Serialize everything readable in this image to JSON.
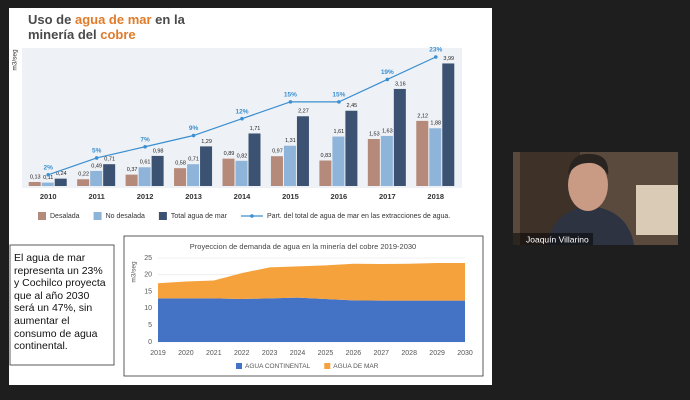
{
  "slide": {
    "chart1": {
      "type": "bar",
      "title": [
        {
          "text": "Uso de ",
          "color": "#4a4a4a"
        },
        {
          "text": "agua de mar",
          "color": "#e07b2a"
        },
        {
          "text": " en la",
          "color": "#4a4a4a"
        },
        {
          "text": "minería del ",
          "color": "#4a4a4a"
        },
        {
          "text": "cobre",
          "color": "#e07b2a"
        }
      ],
      "ylabel": "m3/seg",
      "categories": [
        "2010",
        "2011",
        "2012",
        "2013",
        "2014",
        "2015",
        "2016",
        "2017",
        "2018"
      ],
      "ylim": [
        0,
        4.2
      ],
      "y2lim": [
        0,
        23
      ],
      "series": [
        {
          "name": "Desalada",
          "color": "#b58a7a",
          "values": [
            0.13,
            0.22,
            0.37,
            0.58,
            0.89,
            0.97,
            0.83,
            1.53,
            2.12
          ],
          "value_labels": [
            "0,13",
            "0,22",
            "0,37",
            "0,58",
            "0,89",
            "0,97",
            "0,83",
            "1,53",
            "2,12"
          ]
        },
        {
          "name": "No desalada",
          "color": "#8fb4d9",
          "values": [
            0.11,
            0.49,
            0.61,
            0.71,
            0.82,
            1.31,
            1.61,
            1.63,
            1.88
          ],
          "value_labels": [
            "0,11",
            "0,49",
            "0,61",
            "0,71",
            "0,82",
            "1,31",
            "1,61",
            "1,63",
            "1,88"
          ]
        },
        {
          "name": "Total agua de mar",
          "color": "#3b5272",
          "values": [
            0.24,
            0.71,
            0.98,
            1.29,
            1.71,
            2.27,
            2.45,
            3.16,
            3.99
          ],
          "value_labels": [
            "0,24",
            "0,71",
            "0,98",
            "1,29",
            "1,71",
            "2,27",
            "2,45",
            "3,16",
            "3,99"
          ]
        },
        {
          "name": "Part. del total de agua de mar en las extracciones de agua.",
          "color": "#3a8fd0",
          "axis": "y2",
          "type": "line",
          "values": [
            2,
            5,
            7,
            9,
            12,
            15,
            15,
            19,
            23
          ],
          "value_labels": [
            "2%",
            "5%",
            "7%",
            "9%",
            "12%",
            "15%",
            "15%",
            "19%",
            "23%"
          ]
        }
      ]
    },
    "note": "El agua de mar representa un 23% y Cochilco proyecta que al año 2030 será un 47%, sin aumentar el consumo de agua continental.",
    "chart2": {
      "type": "area",
      "title": "Proyeccion de demanda de agua en la minería del cobre 2019-2030",
      "ylabel": "m3/seg",
      "x": [
        2019,
        2020,
        2021,
        2022,
        2023,
        2024,
        2025,
        2026,
        2027,
        2028,
        2029,
        2030
      ],
      "xlim": [
        2019,
        2030
      ],
      "ylim": [
        0,
        25
      ],
      "yticks": [
        0,
        5,
        10,
        15,
        20,
        25
      ],
      "series": [
        {
          "name": "AGUA CONTINENTAL",
          "color": "#4472c4",
          "values": [
            13,
            13,
            13,
            12.8,
            13,
            13.2,
            12.8,
            12.4,
            12.3,
            12.3,
            12.3,
            12.3
          ]
        },
        {
          "name": "AGUA DE MAR",
          "color": "#f6a23c",
          "values": [
            4.5,
            5,
            5.3,
            7.7,
            9.2,
            9.3,
            10,
            10.9,
            10.9,
            11,
            11.2,
            11.2
          ]
        }
      ]
    }
  },
  "video": {
    "name": "Joaquín Villarino"
  }
}
